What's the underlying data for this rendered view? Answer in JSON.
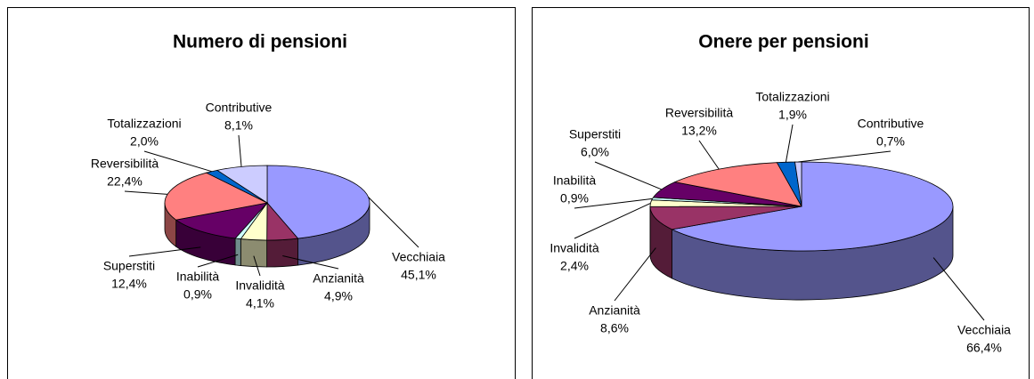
{
  "chart_data": [
    {
      "type": "pie",
      "title": "Numero di pensioni",
      "categories": [
        "Vecchiaia",
        "Anzianità",
        "Invalidità",
        "Inabilità",
        "Superstiti",
        "Reversibilità",
        "Totalizzazioni",
        "Contributive"
      ],
      "values": [
        45.1,
        4.9,
        4.1,
        0.9,
        12.4,
        22.4,
        2.0,
        8.1
      ],
      "value_labels": [
        "45,1%",
        "4,9%",
        "4,1%",
        "0,9%",
        "12,4%",
        "22,4%",
        "2,0%",
        "8,1%"
      ],
      "colors": [
        "#9999ff",
        "#993366",
        "#ffffcc",
        "#ccffff",
        "#660066",
        "#ff8080",
        "#0066cc",
        "#ccccff"
      ]
    },
    {
      "type": "pie",
      "title": "Onere per pensioni",
      "categories": [
        "Vecchiaia",
        "Anzianità",
        "Invalidità",
        "Inabilità",
        "Superstiti",
        "Reversibilità",
        "Totalizzazioni",
        "Contributive"
      ],
      "values": [
        66.4,
        8.6,
        2.4,
        0.9,
        6.0,
        13.2,
        1.9,
        0.7
      ],
      "value_labels": [
        "66,4%",
        "8,6%",
        "2,4%",
        "0,9%",
        "6,0%",
        "13,2%",
        "1,9%",
        "0,7%"
      ],
      "colors": [
        "#9999ff",
        "#993366",
        "#ffffcc",
        "#ccffff",
        "#660066",
        "#ff8080",
        "#0066cc",
        "#ccccff"
      ]
    }
  ]
}
